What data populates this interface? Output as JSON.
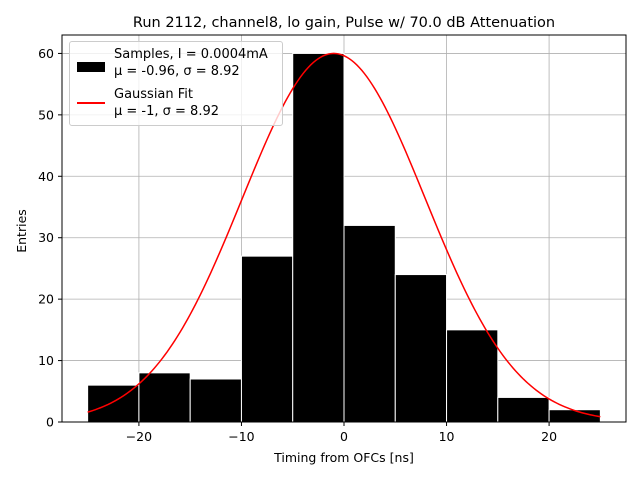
{
  "chart_data": {
    "type": "bar",
    "title": "Run 2112, channel8, lo gain, Pulse w/ 70.0 dB Attenuation",
    "xlabel": "Timing from OFCs [ns]",
    "ylabel": "Entries",
    "xlim": [
      -27.5,
      27.5
    ],
    "ylim": [
      0,
      63
    ],
    "grid": true,
    "bin_edges": [
      -25,
      -20,
      -15,
      -10,
      -5,
      0,
      5,
      10,
      15,
      20,
      25
    ],
    "bin_counts": [
      6,
      8,
      7,
      27,
      60,
      32,
      24,
      15,
      4,
      2
    ],
    "x_ticks": [
      -20,
      -10,
      0,
      10,
      20
    ],
    "x_tick_labels": [
      "−20",
      "−10",
      "0",
      "10",
      "20"
    ],
    "y_ticks": [
      0,
      10,
      20,
      30,
      40,
      50,
      60
    ],
    "y_tick_labels": [
      "0",
      "10",
      "20",
      "30",
      "40",
      "50",
      "60"
    ],
    "fit": {
      "type": "gaussian",
      "mu": -1,
      "sigma": 8.92,
      "amplitude": 60,
      "x_range": [
        -25,
        25
      ]
    },
    "legend_position": "upper-left",
    "series": [
      {
        "name": "Samples",
        "label_line1": "Samples, I = 0.0004mA",
        "label_line2": "μ = -0.96, σ = 8.92",
        "color": "#000000",
        "kind": "histogram"
      },
      {
        "name": "Gaussian Fit",
        "label_line1": "Gaussian Fit",
        "label_line2": "μ = -1, σ = 8.92",
        "color": "#ff0000",
        "kind": "line"
      }
    ]
  }
}
